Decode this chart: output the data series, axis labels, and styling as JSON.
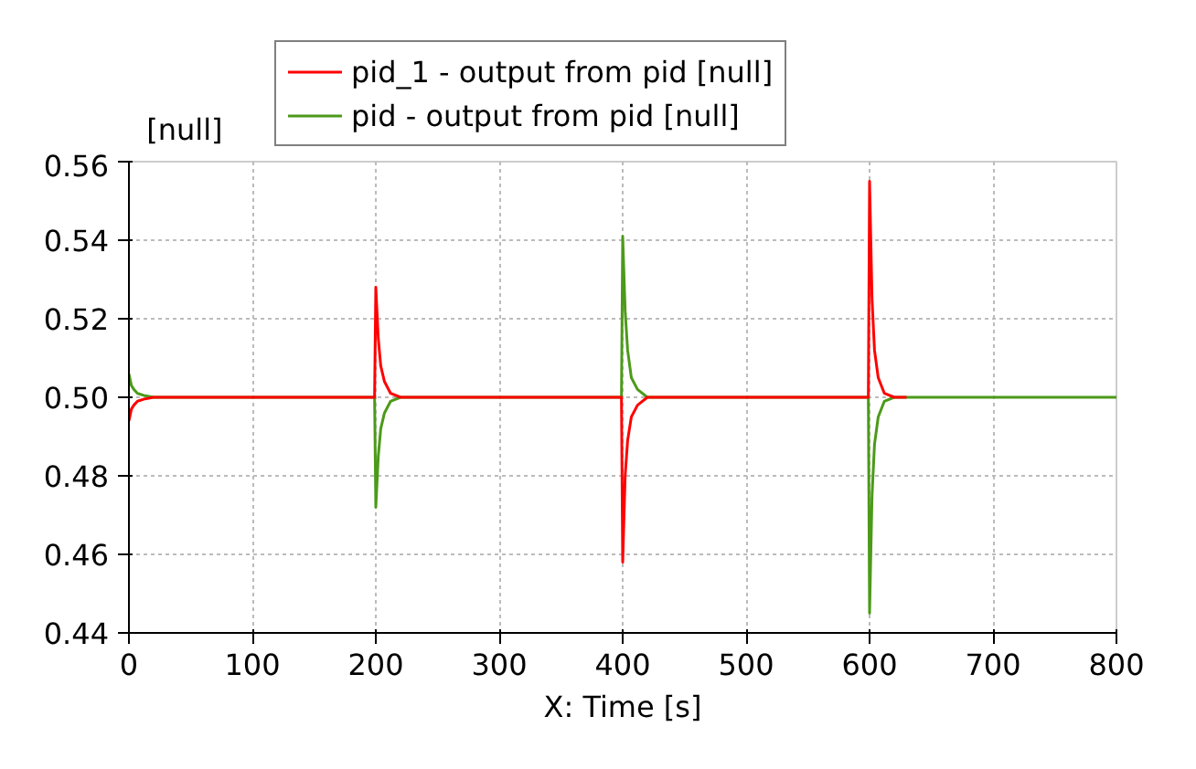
{
  "chart_data": {
    "type": "line",
    "xlabel": "X: Time [s]",
    "ylabel": "[null]",
    "xlim": [
      0,
      800
    ],
    "ylim": [
      0.44,
      0.56
    ],
    "xticks": [
      0,
      100,
      200,
      300,
      400,
      500,
      600,
      700,
      800
    ],
    "yticks": [
      {
        "value": 0.44,
        "label": "0.44"
      },
      {
        "value": 0.46,
        "label": "0.46"
      },
      {
        "value": 0.48,
        "label": "0.48"
      },
      {
        "value": 0.5,
        "label": "0.50"
      },
      {
        "value": 0.52,
        "label": "0.52"
      },
      {
        "value": 0.54,
        "label": "0.54"
      },
      {
        "value": 0.56,
        "label": "0.56"
      }
    ],
    "grid": true,
    "legend": "top",
    "line_style": "solid",
    "marker": "none",
    "series": [
      {
        "name": "pid - output from pid [null]",
        "color": "#4c9a1a",
        "x": [
          0,
          2,
          4,
          7,
          12,
          20,
          199,
          200,
          202,
          204,
          207,
          212,
          220,
          399,
          400,
          402,
          404,
          407,
          412,
          420,
          599,
          600,
          602,
          604,
          607,
          612,
          620,
          630,
          800
        ],
        "values": [
          0.506,
          0.503,
          0.502,
          0.501,
          0.5005,
          0.5,
          0.5,
          0.472,
          0.485,
          0.492,
          0.496,
          0.499,
          0.5,
          0.5,
          0.541,
          0.522,
          0.512,
          0.505,
          0.502,
          0.5,
          0.5,
          0.445,
          0.475,
          0.488,
          0.495,
          0.499,
          0.5,
          0.5,
          0.5
        ]
      },
      {
        "name": "pid_1 - output from pid [null]",
        "color": "#ff0000",
        "x": [
          0,
          2,
          4,
          7,
          12,
          20,
          199,
          200,
          202,
          204,
          207,
          212,
          220,
          399,
          400,
          402,
          404,
          407,
          412,
          420,
          599,
          600,
          602,
          604,
          607,
          612,
          620,
          630
        ],
        "values": [
          0.494,
          0.497,
          0.498,
          0.499,
          0.4995,
          0.5,
          0.5,
          0.528,
          0.515,
          0.508,
          0.504,
          0.501,
          0.5,
          0.5,
          0.458,
          0.48,
          0.489,
          0.495,
          0.498,
          0.5,
          0.5,
          0.555,
          0.525,
          0.512,
          0.505,
          0.501,
          0.5,
          0.5
        ]
      }
    ]
  }
}
